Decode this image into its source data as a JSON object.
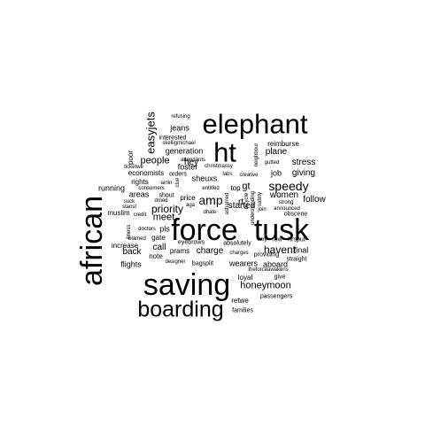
{
  "text_color": "#000000",
  "background_color": "#ffffff",
  "words": [
    "elephant",
    "ht",
    "force",
    "tusk",
    "saving",
    "african",
    "boarding",
    "easyjets",
    "speedy",
    "amp",
    "priority",
    "havent",
    "honeymoon",
    "people",
    "meet",
    "stress",
    "plane",
    "giving",
    "follow",
    "women",
    "started",
    "hey",
    "charge",
    "call",
    "back",
    "flights",
    "running",
    "areas",
    "generation",
    "foster",
    "jeans",
    "poor",
    "rights",
    "muslim",
    "job",
    "gt",
    "rt",
    "final",
    "aboard",
    "wearers",
    "loyal",
    "retwe",
    "families",
    "passengers",
    "pls",
    "gate",
    "increase",
    "note",
    "prams",
    "eyebrows",
    "absolutely",
    "sheuxs",
    "price",
    "economists",
    "refusing",
    "interested",
    "skelligmichael",
    "ticketwe",
    "orders",
    "christmassy",
    "attendants",
    "airlin",
    "consumers",
    "entitled",
    "creative",
    "labs",
    "reimburse",
    "gutted",
    "neighbour",
    "strong",
    "announced",
    "obscene",
    "row",
    "hrsput",
    "give",
    "straight",
    "fairy",
    "providing",
    "charges",
    "bagsplit",
    "designer",
    "doctors",
    "blamed",
    "illness",
    "stanst",
    "credit",
    "suck",
    "shout",
    "aga",
    "dhate",
    "dmed",
    "top",
    "ashamed",
    "understanding",
    "bicycle",
    "safety",
    "join",
    "theforceawakens",
    "clue"
  ]
}
